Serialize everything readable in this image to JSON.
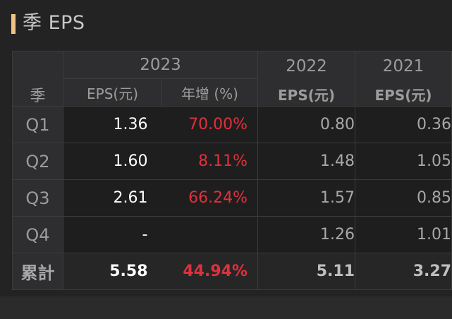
{
  "section": {
    "title": "季 EPS"
  },
  "table": {
    "season_header": "季",
    "year_2023": "2023",
    "year_2022": "2022",
    "year_2021": "2021",
    "eps_unit": "EPS(元)",
    "growth_label": "年增 (%)",
    "rows": [
      {
        "label": "Q1",
        "eps_2023": "1.36",
        "growth": "70.00%",
        "eps_2022": "0.80",
        "eps_2021": "0.36"
      },
      {
        "label": "Q2",
        "eps_2023": "1.60",
        "growth": "8.11%",
        "eps_2022": "1.48",
        "eps_2021": "1.05"
      },
      {
        "label": "Q3",
        "eps_2023": "2.61",
        "growth": "66.24%",
        "eps_2022": "1.57",
        "eps_2021": "0.85"
      },
      {
        "label": "Q4",
        "eps_2023": "-",
        "growth": "",
        "eps_2022": "1.26",
        "eps_2021": "1.01"
      }
    ],
    "total": {
      "label": "累計",
      "eps_2023": "5.58",
      "growth": "44.94%",
      "eps_2022": "5.11",
      "eps_2021": "3.27"
    }
  },
  "colors": {
    "accent": "#f2c384",
    "negative_or_growth": "#e0303d",
    "background": "#232323"
  }
}
